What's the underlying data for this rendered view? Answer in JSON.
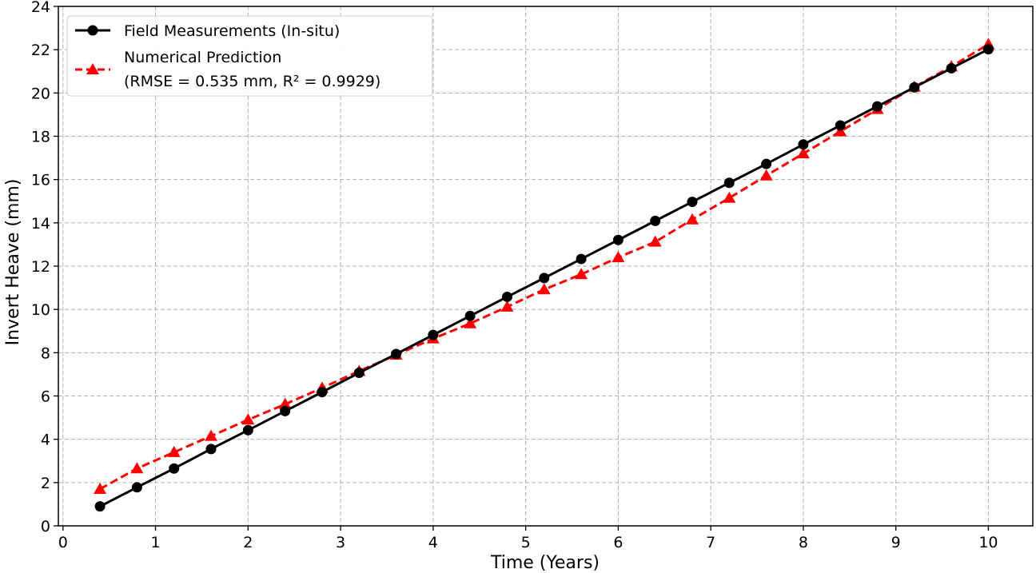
{
  "chart_data": {
    "type": "line",
    "title": "",
    "xlabel": "Time (Years)",
    "ylabel": "Invert Heave (mm)",
    "xlim": [
      -0.05,
      10.48
    ],
    "ylim": [
      0,
      24
    ],
    "xticks": [
      0,
      1,
      2,
      3,
      4,
      5,
      6,
      7,
      8,
      9,
      10
    ],
    "yticks": [
      0,
      2,
      4,
      6,
      8,
      10,
      12,
      14,
      16,
      18,
      20,
      22,
      24
    ],
    "grid": true,
    "legend_position": "top-left",
    "x": [
      0.4,
      0.8,
      1.2,
      1.6,
      2.0,
      2.4,
      2.8,
      3.2,
      3.6,
      4.0,
      4.4,
      4.8,
      5.2,
      5.6,
      6.0,
      6.4,
      6.8,
      7.2,
      7.6,
      8.0,
      8.4,
      8.8,
      9.2,
      9.6,
      10.0
    ],
    "series": [
      {
        "name": "Field Measurements (In-situ)",
        "color": "#000000",
        "marker": "circle",
        "line_style": "solid",
        "values": [
          0.9,
          1.78,
          2.65,
          3.55,
          4.42,
          5.3,
          6.18,
          7.07,
          7.94,
          8.82,
          9.7,
          10.58,
          11.45,
          12.33,
          13.21,
          14.09,
          14.97,
          15.85,
          16.72,
          17.62,
          18.5,
          19.38,
          20.26,
          21.14,
          22.02
        ]
      },
      {
        "name": "Numerical Prediction",
        "name_line2": "(RMSE = 0.535 mm, R² = 0.9929)",
        "color": "#ff0000",
        "marker": "triangle",
        "line_style": "dashed",
        "values": [
          1.7,
          2.65,
          3.4,
          4.15,
          4.9,
          5.62,
          6.37,
          7.15,
          7.9,
          8.65,
          9.35,
          10.12,
          10.92,
          11.62,
          12.4,
          13.12,
          14.15,
          15.15,
          16.18,
          17.2,
          18.22,
          19.25,
          20.28,
          21.22,
          22.25
        ]
      }
    ]
  }
}
